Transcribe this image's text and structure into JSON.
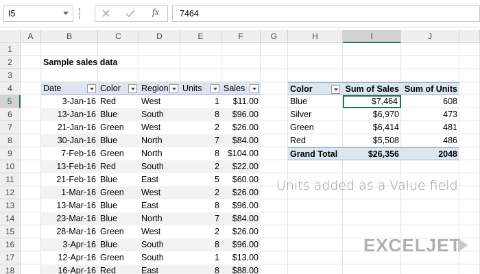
{
  "formula_bar": {
    "name_box": "I5",
    "fx": "fx",
    "value": "7464"
  },
  "columns": [
    "A",
    "B",
    "C",
    "D",
    "E",
    "F",
    "G",
    "H",
    "I",
    "J"
  ],
  "row_numbers": [
    1,
    2,
    3,
    4,
    5,
    6,
    7,
    8,
    9,
    10,
    11,
    12,
    13,
    14,
    15,
    16,
    17,
    18
  ],
  "title": "Sample sales data",
  "table": {
    "headers": [
      "Date",
      "Color",
      "Region",
      "Units",
      "Sales"
    ],
    "rows": [
      [
        "3-Jan-16",
        "Red",
        "West",
        1,
        "$11.00"
      ],
      [
        "13-Jan-16",
        "Blue",
        "South",
        8,
        "$96.00"
      ],
      [
        "21-Jan-16",
        "Green",
        "West",
        2,
        "$26.00"
      ],
      [
        "30-Jan-16",
        "Blue",
        "North",
        7,
        "$84.00"
      ],
      [
        "7-Feb-16",
        "Green",
        "North",
        8,
        "$104.00"
      ],
      [
        "13-Feb-16",
        "Red",
        "South",
        2,
        "$22.00"
      ],
      [
        "21-Feb-16",
        "Blue",
        "East",
        5,
        "$60.00"
      ],
      [
        "1-Mar-16",
        "Green",
        "West",
        2,
        "$26.00"
      ],
      [
        "13-Mar-16",
        "Blue",
        "East",
        8,
        "$96.00"
      ],
      [
        "23-Mar-16",
        "Blue",
        "North",
        7,
        "$84.00"
      ],
      [
        "28-Mar-16",
        "Green",
        "West",
        2,
        "$26.00"
      ],
      [
        "3-Apr-16",
        "Blue",
        "South",
        8,
        "$96.00"
      ],
      [
        "12-Apr-16",
        "Green",
        "South",
        1,
        "$13.00"
      ],
      [
        "16-Apr-16",
        "Red",
        "East",
        8,
        "$88.00"
      ]
    ]
  },
  "pivot": {
    "headers": [
      "Color",
      "Sum of Sales",
      "Sum of Units"
    ],
    "rows": [
      [
        "Blue",
        "$7,464",
        608
      ],
      [
        "Silver",
        "$6,970",
        473
      ],
      [
        "Green",
        "$6,414",
        481
      ],
      [
        "Red",
        "$5,508",
        486
      ]
    ],
    "total": [
      "Grand Total",
      "$26,356",
      2048
    ]
  },
  "annotation": "Units added as a Value field",
  "logo": "EXCELJET"
}
